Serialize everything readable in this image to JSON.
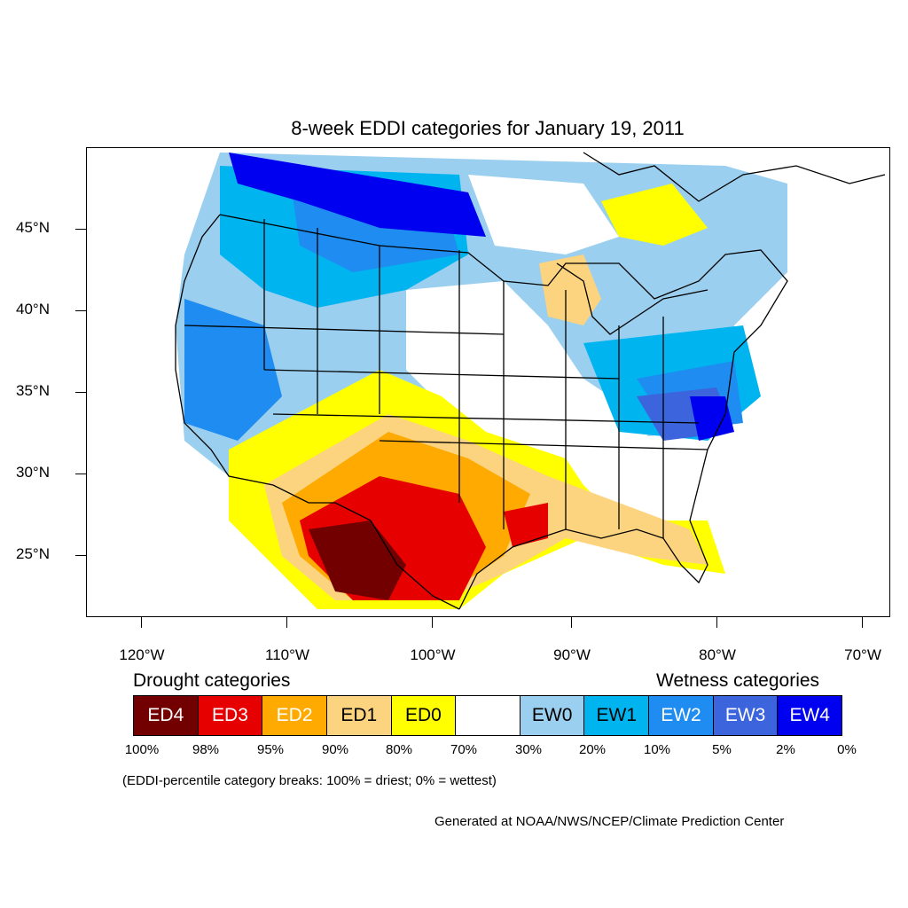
{
  "title": "8-week EDDI categories for January 19, 2011",
  "lat_labels": [
    "45°N",
    "40°N",
    "35°N",
    "30°N",
    "25°N"
  ],
  "lon_labels": [
    "120°W",
    "110°W",
    "100°W",
    "90°W",
    "80°W",
    "70°W"
  ],
  "legend": {
    "drought_heading": "Drought categories",
    "wetness_heading": "Wetness categories",
    "boxes": [
      {
        "label": "ED4",
        "color": "#730000",
        "text_color": "#ffffff"
      },
      {
        "label": "ED3",
        "color": "#e60000",
        "text_color": "#ffffff"
      },
      {
        "label": "ED2",
        "color": "#ffaa00",
        "text_color": "#ffffff"
      },
      {
        "label": "ED1",
        "color": "#fcd37f",
        "text_color": "#000000"
      },
      {
        "label": "ED0",
        "color": "#ffff00",
        "text_color": "#000000"
      },
      {
        "label": "",
        "color": "#ffffff",
        "text_color": "#000000"
      },
      {
        "label": "EW0",
        "color": "#9bcfef",
        "text_color": "#000000"
      },
      {
        "label": "EW1",
        "color": "#00b4f0",
        "text_color": "#000000"
      },
      {
        "label": "EW2",
        "color": "#1e8cf0",
        "text_color": "#ffffff"
      },
      {
        "label": "EW3",
        "color": "#3c64dc",
        "text_color": "#ffffff"
      },
      {
        "label": "EW4",
        "color": "#0000f0",
        "text_color": "#ffffff"
      }
    ],
    "percentiles": [
      "100%",
      "98%",
      "95%",
      "90%",
      "80%",
      "70%",
      "30%",
      "20%",
      "10%",
      "5%",
      "2%",
      "0%"
    ]
  },
  "note": "(EDDI-percentile category breaks: 100% = driest; 0% = wettest)",
  "credit": "Generated at NOAA/NWS/NCEP/Climate Prediction Center"
}
